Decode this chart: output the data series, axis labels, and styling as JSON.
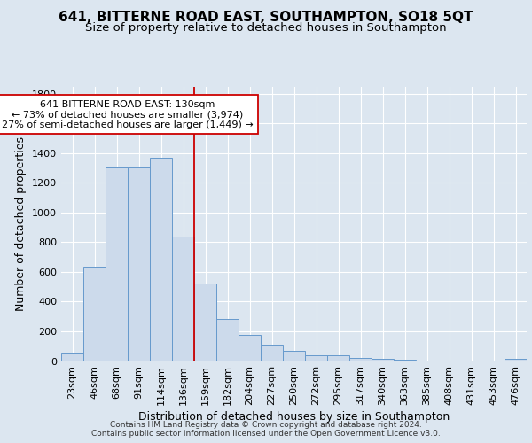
{
  "title": "641, BITTERNE ROAD EAST, SOUTHAMPTON, SO18 5QT",
  "subtitle": "Size of property relative to detached houses in Southampton",
  "xlabel": "Distribution of detached houses by size in Southampton",
  "ylabel": "Number of detached properties",
  "categories": [
    "23sqm",
    "46sqm",
    "68sqm",
    "91sqm",
    "114sqm",
    "136sqm",
    "159sqm",
    "182sqm",
    "204sqm",
    "227sqm",
    "250sqm",
    "272sqm",
    "295sqm",
    "317sqm",
    "340sqm",
    "363sqm",
    "385sqm",
    "408sqm",
    "431sqm",
    "453sqm",
    "476sqm"
  ],
  "values": [
    58,
    635,
    1305,
    1305,
    1370,
    840,
    525,
    285,
    175,
    108,
    70,
    38,
    38,
    22,
    15,
    8,
    5,
    5,
    5,
    5,
    14
  ],
  "bar_color": "#ccdaeb",
  "bar_edge_color": "#6699cc",
  "vline_x": 5.5,
  "vline_color": "#cc0000",
  "annotation_text": "641 BITTERNE ROAD EAST: 130sqm\n← 73% of detached houses are smaller (3,974)\n27% of semi-detached houses are larger (1,449) →",
  "annotation_box_facecolor": "white",
  "annotation_box_edgecolor": "#cc0000",
  "ylim": [
    0,
    1850
  ],
  "background_color": "#dce6f0",
  "plot_background_color": "#dce6f0",
  "grid_color": "white",
  "footer": "Contains HM Land Registry data © Crown copyright and database right 2024.\nContains public sector information licensed under the Open Government Licence v3.0.",
  "title_fontsize": 11,
  "subtitle_fontsize": 9.5,
  "ylabel_fontsize": 9,
  "xlabel_fontsize": 9,
  "tick_fontsize": 8,
  "footer_fontsize": 6.5
}
